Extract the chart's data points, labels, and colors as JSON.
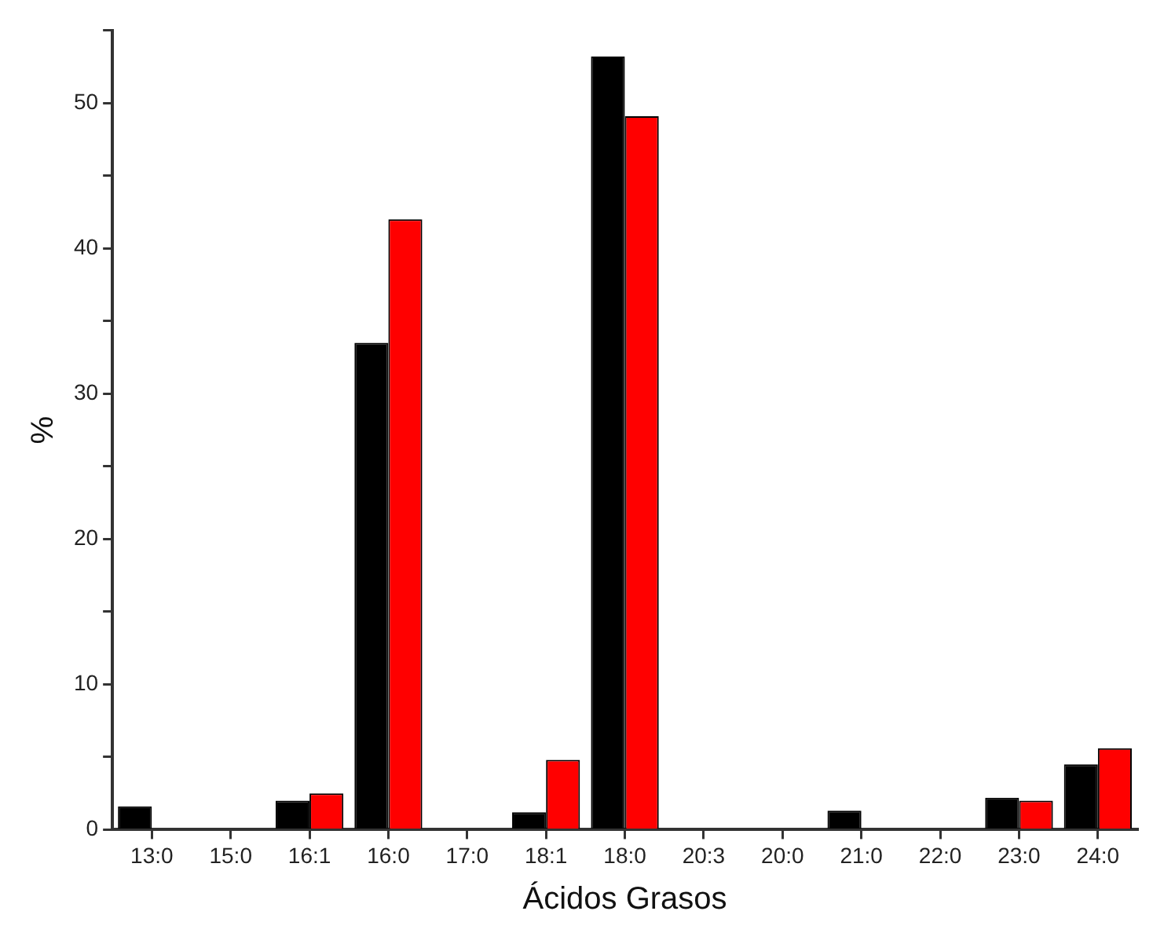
{
  "chart_data": {
    "type": "bar",
    "xlabel": "Ácidos Grasos",
    "ylabel": "%",
    "categories": [
      "13:0",
      "15:0",
      "16:1",
      "16:0",
      "17:0",
      "18:1",
      "18:0",
      "20:3",
      "20:0",
      "21:0",
      "22:0",
      "23:0",
      "24:0"
    ],
    "series": [
      {
        "color": "#000000",
        "values": [
          1.6,
          0,
          2.0,
          33.5,
          0,
          1.2,
          53.2,
          0,
          0,
          1.3,
          0,
          2.2,
          4.5
        ]
      },
      {
        "color": "#ff0000",
        "values": [
          0,
          0,
          2.5,
          42,
          0,
          4.8,
          49.1,
          0,
          0,
          0,
          0,
          2.0,
          5.6
        ]
      }
    ],
    "ylim": [
      0,
      55
    ],
    "yticks": [
      0,
      {
        "value": 5,
        "label": null
      },
      10,
      {
        "value": 15,
        "label": null
      },
      20,
      {
        "value": 25,
        "label": null
      },
      30,
      {
        "value": 35,
        "label": null
      },
      40,
      {
        "value": 45,
        "label": null
      },
      50,
      {
        "value": 55,
        "label": null
      }
    ],
    "grid": false,
    "legend": false
  }
}
